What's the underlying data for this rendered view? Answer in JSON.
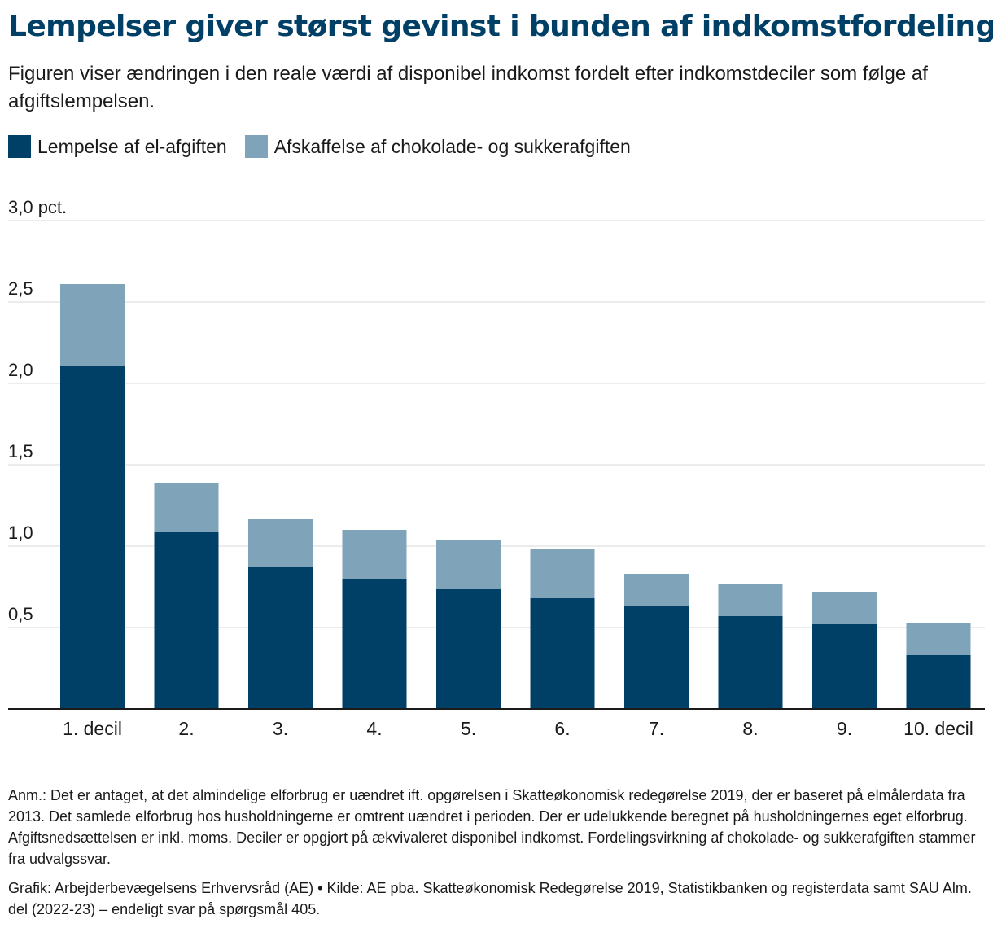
{
  "header": {
    "title": "Lempelser giver størst gevinst i bunden af indkomstfordelingen",
    "subtitle": "Figuren viser ændringen i den reale værdi af disponibel indkomst fordelt efter indkomstdeciler som følge af afgiftslempelsen."
  },
  "legend": {
    "items": [
      {
        "label": "Lempelse af el-afgiften",
        "color": "#003f66"
      },
      {
        "label": "Afskaffelse af chokolade- og sukkerafgiften",
        "color": "#7fa3b8"
      }
    ]
  },
  "chart_data": {
    "type": "bar",
    "stacked": true,
    "categories": [
      "1. decil",
      "2.",
      "3.",
      "4.",
      "5.",
      "6.",
      "7.",
      "8.",
      "9.",
      "10. decil"
    ],
    "series": [
      {
        "name": "Lempelse af el-afgiften",
        "color": "#003f66",
        "values": [
          2.11,
          1.09,
          0.87,
          0.8,
          0.74,
          0.68,
          0.63,
          0.57,
          0.52,
          0.33
        ]
      },
      {
        "name": "Afskaffelse af chokolade- og sukkerafgiften",
        "color": "#7fa3b8",
        "values": [
          0.5,
          0.3,
          0.3,
          0.3,
          0.3,
          0.3,
          0.2,
          0.2,
          0.2,
          0.2
        ]
      }
    ],
    "yticks": [
      "",
      "0,5",
      "1,0",
      "1,5",
      "2,0",
      "2,5",
      "3,0 pct."
    ],
    "ylim": [
      0,
      3.0
    ],
    "grid": true
  },
  "footer": {
    "note": "Anm.: Det er antaget, at det almindelige elforbrug er uændret ift. opgørelsen i Skatteøkonomisk redegørelse 2019, der er baseret på elmålerdata fra 2013. Det samlede elforbrug hos husholdningerne er omtrent uændret i perioden. Der er udelukkende beregnet på husholdningernes eget elforbrug. Afgiftsnedsættelsen er inkl. moms. Deciler er opgjort på ækvivaleret disponibel indkomst. Fordelingsvirkning af chokolade- og sukkerafgiften stammer fra udvalgssvar.",
    "source": "Grafik: Arbejderbevægelsens Erhvervsråd (AE) • Kilde: AE pba. Skatteøkonomisk Redegørelse 2019, Statistikbanken og registerdata samt SAU Alm. del (2022-23) – endeligt svar på spørgsmål 405."
  }
}
